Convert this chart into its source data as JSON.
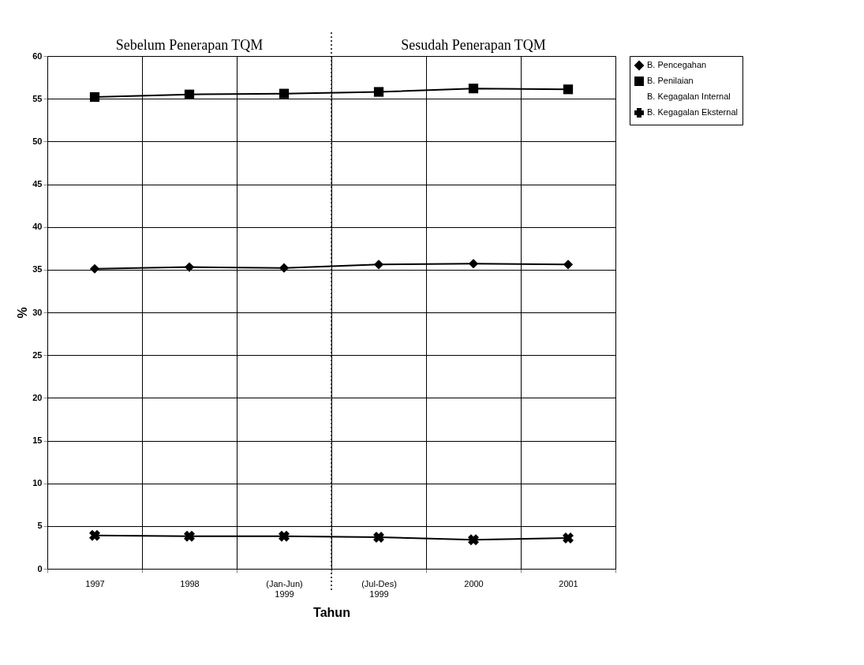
{
  "chart_data": {
    "type": "line",
    "xlabel": "Tahun",
    "ylabel": "%",
    "categories": [
      "1997",
      "1998",
      "(Jan-Jun) 1999",
      "(Jul-Des) 1999",
      "2000",
      "2001"
    ],
    "series": [
      {
        "name": "B. Pencegahan",
        "color": "#000000",
        "marker": "diamond",
        "values": [
          35.1,
          35.3,
          35.2,
          35.6,
          35.7,
          35.6
        ]
      },
      {
        "name": "B. Penilaian",
        "color": "#000000",
        "marker": "square",
        "values": [
          55.2,
          55.5,
          55.6,
          55.8,
          56.2,
          56.1
        ]
      },
      {
        "name": "B. Kegagalan Internal",
        "marker": "none",
        "values": [
          null,
          null,
          null,
          null,
          null,
          null
        ]
      },
      {
        "name": "B. Kegagalan Eksternal",
        "color": "#000000",
        "marker": "cross",
        "values": [
          3.9,
          3.8,
          3.8,
          3.7,
          3.4,
          3.6
        ]
      }
    ],
    "ylim": [
      0,
      60
    ],
    "yticks": [
      0,
      5,
      10,
      15,
      20,
      25,
      30,
      35,
      40,
      45,
      50,
      55,
      60
    ],
    "grid": "y",
    "legend": "right",
    "annotations": [
      "Sebelum Penerapan TQM",
      "Sesudah Penerapan TQM"
    ],
    "ref_lines": [
      {
        "axis": "x",
        "value": "(Jul-Des) 1999",
        "line_style": "dotted",
        "color": "#000000"
      }
    ]
  }
}
